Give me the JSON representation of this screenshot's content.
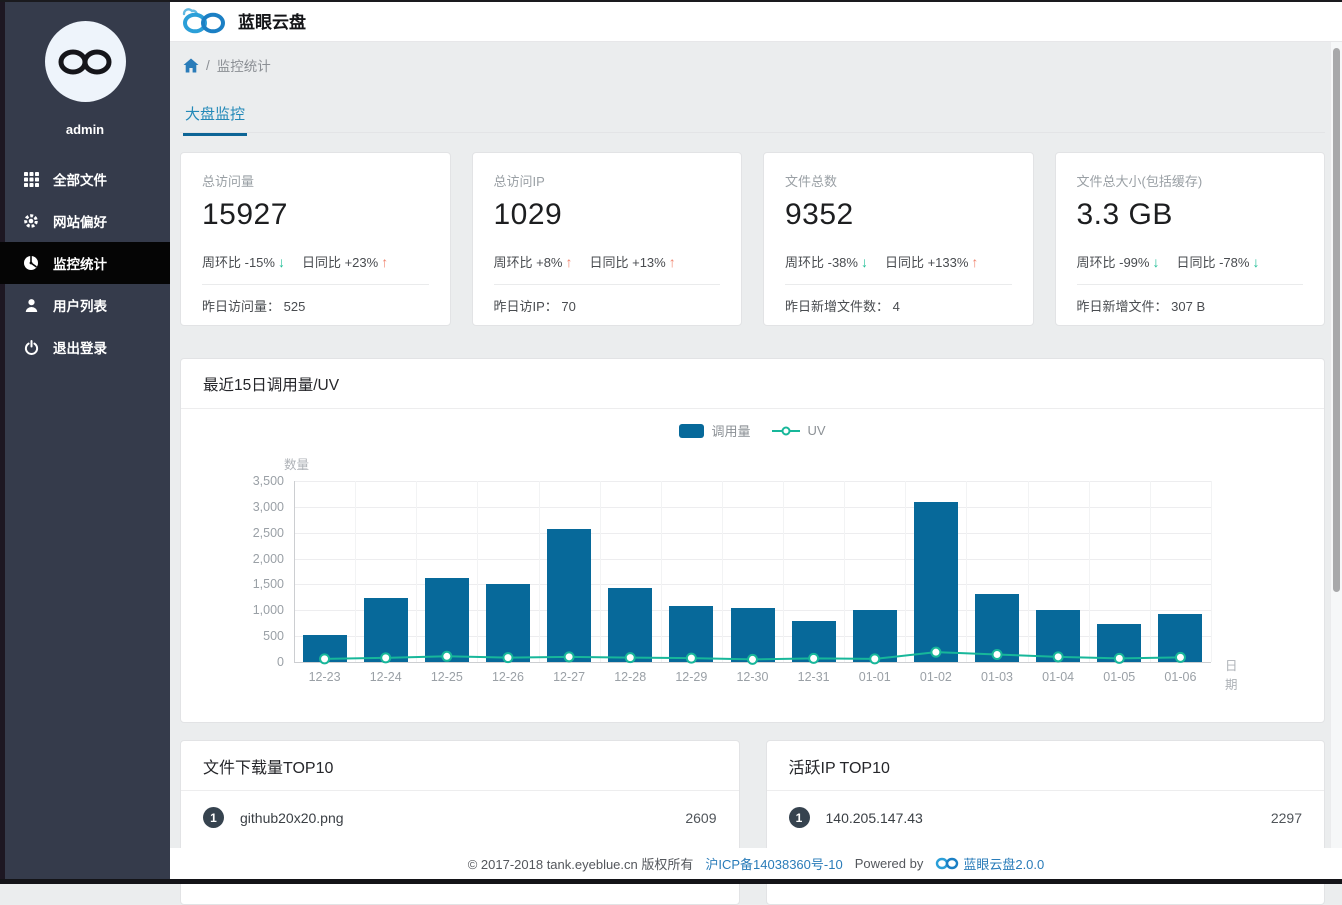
{
  "header": {
    "title": "蓝眼云盘"
  },
  "sidebar": {
    "username": "admin",
    "items": [
      {
        "label": "全部文件",
        "icon": "grid-icon",
        "active": false
      },
      {
        "label": "网站偏好",
        "icon": "gear-icon",
        "active": false
      },
      {
        "label": "监控统计",
        "icon": "dashboard-icon",
        "active": true
      },
      {
        "label": "用户列表",
        "icon": "user-icon",
        "active": false
      },
      {
        "label": "退出登录",
        "icon": "power-icon",
        "active": false
      }
    ]
  },
  "breadcrumb": {
    "separator": "/",
    "current": "监控统计"
  },
  "tabs": {
    "active": "大盘监控"
  },
  "stat_cards": [
    {
      "label": "总访问量",
      "value": "15927",
      "week_label": "周环比 -15%",
      "week_arrow": "↓",
      "day_label": "日同比 +23%",
      "day_arrow": "↑",
      "footer_label": "昨日访问量：",
      "footer_value": "525"
    },
    {
      "label": "总访问IP",
      "value": "1029",
      "week_label": "周环比 +8%",
      "week_arrow": "↑",
      "day_label": "日同比 +13%",
      "day_arrow": "↑",
      "footer_label": "昨日访IP：",
      "footer_value": "70"
    },
    {
      "label": "文件总数",
      "value": "9352",
      "week_label": "周环比 -38%",
      "week_arrow": "↓",
      "day_label": "日同比 +133%",
      "day_arrow": "↑",
      "footer_label": "昨日新增文件数：",
      "footer_value": "4"
    },
    {
      "label": "文件总大小(包括缓存)",
      "value": "3.3 GB",
      "week_label": "周环比 -99%",
      "week_arrow": "↓",
      "day_label": "日同比 -78%",
      "day_arrow": "↓",
      "footer_label": "昨日新增文件：",
      "footer_value": "307 B"
    }
  ],
  "chart_card": {
    "title": "最近15日调用量/UV"
  },
  "chart_data": {
    "type": "bar",
    "categories": [
      "12-23",
      "12-24",
      "12-25",
      "12-26",
      "12-27",
      "12-28",
      "12-29",
      "12-30",
      "12-31",
      "01-01",
      "01-02",
      "01-03",
      "01-04",
      "01-05",
      "01-06"
    ],
    "series": [
      {
        "name": "调用量",
        "type": "bar",
        "color": "#07699a",
        "values": [
          520,
          1240,
          1620,
          1510,
          2580,
          1440,
          1090,
          1050,
          790,
          1000,
          3090,
          1310,
          1010,
          740,
          920
        ]
      },
      {
        "name": "UV",
        "type": "line",
        "color": "#17b79a",
        "values": [
          60,
          80,
          110,
          85,
          100,
          85,
          75,
          50,
          70,
          60,
          190,
          145,
          100,
          70,
          90
        ]
      }
    ],
    "title": "最近15日调用量/UV",
    "xlabel": "日期",
    "ylabel": "数量",
    "ylim": [
      0,
      3500
    ],
    "ytick_step": 500,
    "grid": true,
    "legend_position": "top-center"
  },
  "top_lists": [
    {
      "title": "文件下载量TOP10",
      "rows": [
        {
          "rank": "1",
          "name": "github20x20.png",
          "value": "2609"
        }
      ]
    },
    {
      "title": "活跃IP TOP10",
      "rows": [
        {
          "rank": "1",
          "name": "140.205.147.43",
          "value": "2297"
        }
      ]
    }
  ],
  "page_footer": {
    "copyright": "© 2017-2018 tank.eyeblue.cn 版权所有",
    "icp": "沪ICP备14038360号-10",
    "powered_by": "Powered by",
    "brand": "蓝眼云盘2.0.0"
  },
  "colors": {
    "bar": "#07699a",
    "line": "#17b79a",
    "trend_up": "#f0836d",
    "trend_down": "#1fbf97",
    "sidebar_bg": "#353b4b",
    "sidebar_active_bg": "#050505",
    "tab_blue": "#2389b8",
    "tab_underline": "#0d6596",
    "link_blue": "#2a7cb9",
    "badge_bg": "#36434f"
  }
}
